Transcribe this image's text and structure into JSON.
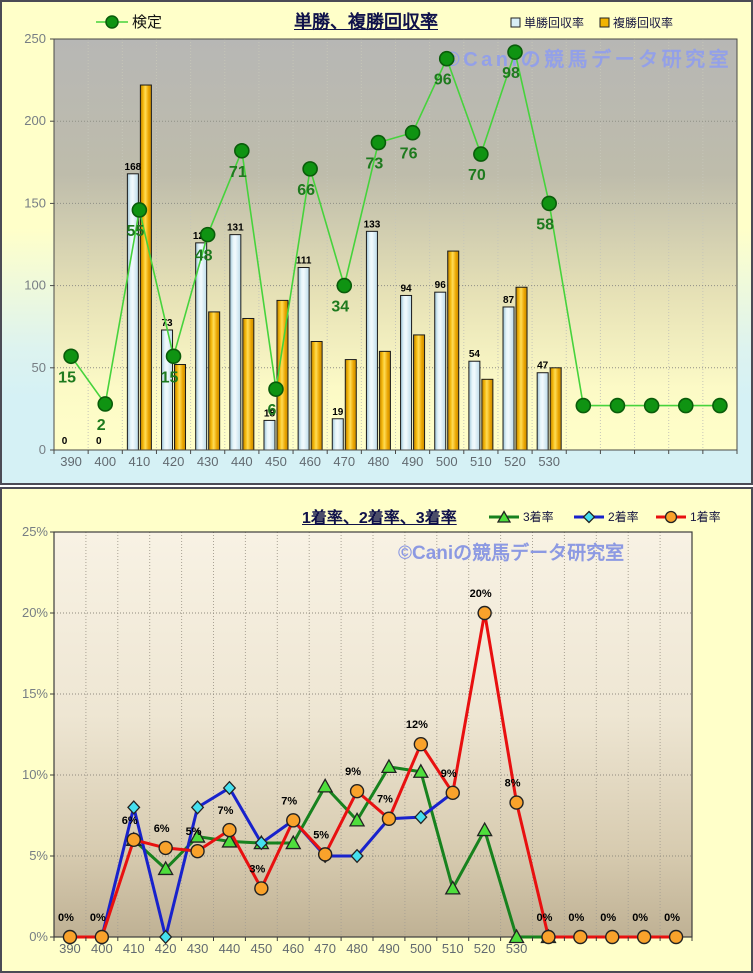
{
  "watermark": "©Caniの競馬データ研究室",
  "chart_data": [
    {
      "type": "bar",
      "title": "単勝、複勝回収率",
      "categories": [
        "390",
        "400",
        "410",
        "420",
        "430",
        "440",
        "450",
        "460",
        "470",
        "480",
        "490",
        "500",
        "510",
        "520",
        "530",
        "",
        "",
        "",
        "",
        ""
      ],
      "ylim": [
        0,
        250
      ],
      "yticks": [
        0,
        50,
        100,
        150,
        200,
        250
      ],
      "grid": "both-dotted",
      "legend_position": "top",
      "plot_bg_gradient": [
        "#b7b7b5",
        "#bebcab",
        "#e6e1b6",
        "#fcfac6",
        "#ffffc9"
      ],
      "plot_bg_offsets": [
        0,
        0.33,
        0.62,
        0.85,
        1
      ],
      "series": [
        {
          "name": "単勝回収率",
          "type": "bar",
          "fill": [
            "#9cc3d6",
            "#e6f5fa",
            "#f2fafd",
            "#bcdbe9"
          ],
          "fill_offsets": [
            0,
            0.3,
            0.5,
            1
          ],
          "values": [
            0,
            0,
            168,
            73,
            126,
            131,
            18,
            111,
            19,
            133,
            94,
            96,
            54,
            87,
            47,
            null,
            null,
            null,
            null,
            null
          ],
          "labels": [
            "0",
            "0",
            "168",
            "73",
            "126",
            "131",
            "18",
            "111",
            "19",
            "133",
            "94",
            "96",
            "54",
            "87",
            "47"
          ]
        },
        {
          "name": "複勝回収率",
          "type": "bar",
          "fill": [
            "#b97f00",
            "#f4b80c",
            "#ffdc55",
            "#eaa400",
            "#c88c00"
          ],
          "fill_offsets": [
            0,
            0.25,
            0.45,
            0.75,
            1
          ],
          "values": [
            0,
            0,
            222,
            52,
            84,
            80,
            91,
            66,
            55,
            60,
            70,
            121,
            43,
            99,
            50,
            null,
            null,
            null,
            null,
            null
          ]
        },
        {
          "name": "検定",
          "type": "line",
          "color": "#46d33c",
          "marker": "circle",
          "marker_fill": "#0f9312",
          "marker_stroke": "#0a5c0a",
          "values": [
            15,
            2,
            55,
            15,
            48,
            71,
            6,
            66,
            34,
            73,
            76,
            96,
            70,
            98,
            58,
            null,
            null,
            null,
            null,
            null
          ],
          "plotted": [
            57,
            28,
            146,
            57,
            131,
            182,
            37,
            171,
            100,
            187,
            193,
            238,
            180,
            242,
            150,
            27,
            27,
            27,
            27,
            27
          ],
          "label_color": "#1e7a1e"
        }
      ]
    },
    {
      "type": "line",
      "title": "1着率、2着率、3着率",
      "categories": [
        "390",
        "400",
        "410",
        "420",
        "430",
        "440",
        "450",
        "460",
        "470",
        "480",
        "490",
        "500",
        "510",
        "520",
        "530",
        "",
        "",
        "",
        "",
        ""
      ],
      "ylim": [
        0,
        25
      ],
      "ytick_labels": [
        "0%",
        "5%",
        "10%",
        "15%",
        "20%",
        "25%"
      ],
      "grid": "both-dotted",
      "legend_position": "top",
      "plot_bg_gradient": [
        "#f8f2e4",
        "#eee6d3",
        "#d8ccb1",
        "#bfb194"
      ],
      "plot_bg_offsets": [
        0,
        0.45,
        0.78,
        1
      ],
      "series": [
        {
          "name": "3着率",
          "type": "line",
          "color": "#17821e",
          "marker": "triangle",
          "marker_fill": "#4ede3c",
          "marker_stroke": "#222222",
          "values": [
            null,
            null,
            6,
            4.2,
            6.2,
            5.9,
            5.8,
            5.8,
            9.3,
            7.2,
            10.5,
            10.2,
            3,
            6.6,
            0,
            0,
            null,
            null,
            null,
            null
          ]
        },
        {
          "name": "2着率",
          "type": "line",
          "color": "#1822cc",
          "marker": "diamond",
          "marker_fill": "#45e0ef",
          "marker_stroke": "#222222",
          "values": [
            null,
            0,
            8,
            0,
            8,
            9.2,
            5.8,
            7.2,
            5,
            5,
            7.3,
            7.4,
            8.9,
            null,
            null,
            null,
            null,
            null,
            null,
            null
          ]
        },
        {
          "name": "1着率",
          "type": "line",
          "color": "#e81010",
          "marker": "circle",
          "marker_fill": "#f9a22b",
          "marker_stroke": "#222222",
          "values": [
            0,
            0,
            6,
            5.5,
            5.3,
            6.6,
            3,
            7.2,
            5.1,
            9,
            7.3,
            11.9,
            8.9,
            20,
            8.3,
            0,
            0,
            0,
            0,
            0
          ],
          "labels": [
            "0%",
            "0%",
            "6%",
            "6%",
            "5%",
            "7%",
            "3%",
            "7%",
            "5%",
            "9%",
            "7%",
            "12%",
            "9%",
            "20%",
            "8%",
            "0%",
            "0%",
            "0%",
            "0%",
            "0%"
          ],
          "label_color": "#000000"
        }
      ]
    }
  ]
}
